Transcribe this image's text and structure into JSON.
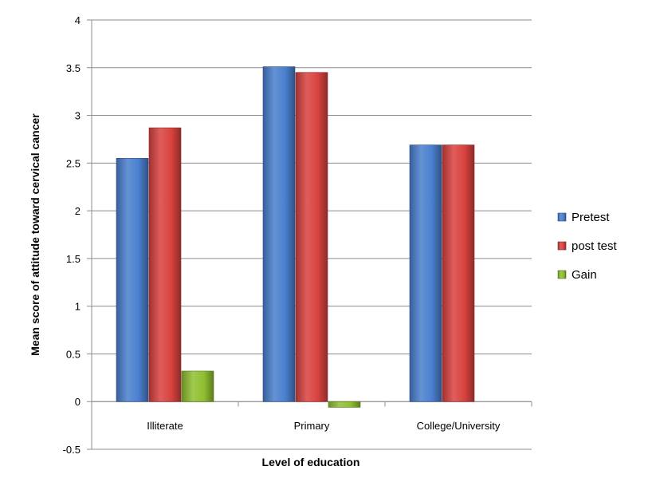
{
  "chart_data": {
    "type": "bar",
    "categories": [
      "Illiterate",
      "Primary",
      "College/University"
    ],
    "series": [
      {
        "name": "Pretest",
        "values": [
          2.55,
          3.51,
          2.69
        ],
        "color": "#4a7fcf"
      },
      {
        "name": "post test",
        "values": [
          2.87,
          3.45,
          2.69
        ],
        "color": "#d9423f"
      },
      {
        "name": "Gain",
        "values": [
          0.32,
          -0.06,
          0
        ],
        "color": "#8fbf2f"
      }
    ],
    "xlabel": "Level of education",
    "ylabel": "Mean score of attitude toward cervical cancer",
    "ylim": [
      -0.5,
      4
    ],
    "yticks": [
      -0.5,
      0,
      0.5,
      1,
      1.5,
      2,
      2.5,
      3,
      3.5,
      4
    ],
    "grid": true,
    "legend_position": "right"
  }
}
